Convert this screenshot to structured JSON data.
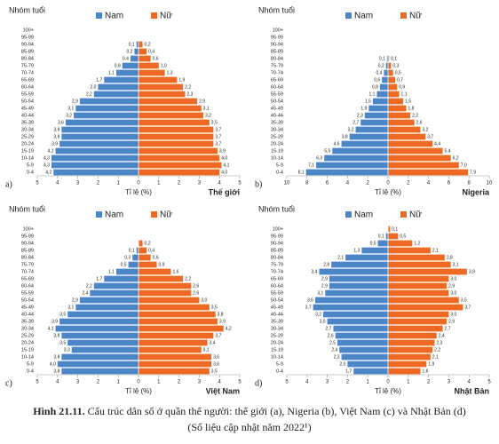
{
  "chart_data": [
    {
      "type": "pyramid",
      "panel": "a)",
      "title": "Thế giới",
      "y_label": "Nhóm tuổi",
      "x_label": "Tỉ lệ (%)",
      "categories": [
        "100+",
        "95-99",
        "90-94",
        "85-89",
        "80-84",
        "75-79",
        "70-74",
        "65-69",
        "60-64",
        "55-59",
        "50-54",
        "45-49",
        "40-44",
        "35-39",
        "30-34",
        "25-29",
        "20-24",
        "15-19",
        "10-14",
        "5-9",
        "0-4"
      ],
      "xlim": [
        -5,
        5
      ],
      "xticks": [
        {
          "value": -5,
          "label": "5"
        },
        {
          "value": -4,
          "label": "4"
        },
        {
          "value": -3,
          "label": "3"
        },
        {
          "value": -2,
          "label": "2"
        },
        {
          "value": -1,
          "label": "1"
        },
        0,
        1,
        2,
        3,
        4,
        5
      ],
      "series": [
        {
          "name": "Nam",
          "color": "#4a86c8",
          "side": "left",
          "values": [
            0,
            0,
            0.1,
            0.2,
            0.4,
            0.8,
            1.1,
            1.7,
            2.0,
            2.2,
            2.9,
            3.1,
            3.2,
            3.6,
            3.8,
            3.8,
            3.9,
            4.1,
            4.3,
            4.3,
            4.2
          ],
          "value_labels": [
            null,
            null,
            "0,1",
            "0,2",
            "0,4",
            "0,8",
            "1,1",
            "1,7",
            "2,0",
            "2,2",
            "2,9",
            "3,1",
            "3,2",
            "3,6",
            "3,8",
            "3,8",
            "3,9",
            "4,1",
            "4,3",
            "4,3",
            "4,2"
          ]
        },
        {
          "name": "Nữ",
          "color": "#ee6a22",
          "side": "right",
          "values": [
            0,
            0,
            0.2,
            0.4,
            0.6,
            1.0,
            1.3,
            1.9,
            2.2,
            2.3,
            2.9,
            3.1,
            3.2,
            3.5,
            3.7,
            3.7,
            3.7,
            3.9,
            4.0,
            4.1,
            4.0
          ],
          "value_labels": [
            null,
            null,
            "0,2",
            "0,4",
            "0,6",
            "1,0",
            "1,3",
            "1,9",
            "2,2",
            "2,3",
            "2,9",
            "3,1",
            "3,2",
            "3,5",
            "3,7",
            "3,7",
            "3,7",
            "3,9",
            "4,0",
            "4,1",
            "4,0"
          ]
        }
      ]
    },
    {
      "type": "pyramid",
      "panel": "b)",
      "title": "Nigeria",
      "y_label": "Nhóm tuổi",
      "x_label": "Tỉ lệ (%)",
      "categories": [
        "100+",
        "95-99",
        "90-94",
        "85-89",
        "80-84",
        "75-79",
        "70-74",
        "65-69",
        "60-64",
        "55-59",
        "50-54",
        "45-49",
        "40-44",
        "35-39",
        "30-34",
        "25-29",
        "20-24",
        "15-19",
        "10-14",
        "5-9",
        "0-4"
      ],
      "xlim": [
        -10,
        10
      ],
      "xticks": [
        {
          "value": -10,
          "label": "10"
        },
        {
          "value": -8,
          "label": "8"
        },
        {
          "value": -6,
          "label": "6"
        },
        {
          "value": -4,
          "label": "4"
        },
        {
          "value": -2,
          "label": "2"
        },
        0,
        2,
        4,
        6,
        8,
        10
      ],
      "series": [
        {
          "name": "Nam",
          "color": "#4a86c8",
          "side": "left",
          "values": [
            0,
            0,
            0,
            0,
            0.1,
            0.2,
            0.4,
            0.6,
            0.8,
            1.1,
            1.5,
            1.9,
            2.3,
            2.7,
            3.2,
            3.8,
            4.6,
            5.5,
            6.3,
            7.1,
            8.1
          ],
          "value_labels": [
            null,
            null,
            null,
            null,
            "0,1",
            "0,2",
            "0,4",
            "0,6",
            "0,8",
            "1,1",
            "1,5",
            "1,9",
            "2,3",
            "2,7",
            "3,2",
            "3,8",
            "4,6",
            "5,5",
            "6,3",
            "7,1",
            "8,1"
          ]
        },
        {
          "name": "Nữ",
          "color": "#ee6a22",
          "side": "right",
          "values": [
            0,
            0,
            0,
            0,
            0.1,
            0.3,
            0.5,
            0.7,
            0.9,
            1.1,
            1.5,
            1.8,
            2.2,
            2.6,
            3.2,
            3.7,
            4.4,
            5.4,
            6.2,
            7.0,
            7.9
          ],
          "value_labels": [
            null,
            null,
            null,
            null,
            "0,1",
            "0,3",
            "0,5",
            "0,7",
            "0,9",
            "1,1",
            "1,5",
            "1,8",
            "2,2",
            "2,6",
            "3,2",
            "3,7",
            "4,4",
            "5,4",
            "6,2",
            "7,0",
            "7,9"
          ]
        }
      ]
    },
    {
      "type": "pyramid",
      "panel": "c)",
      "title": "Việt Nam",
      "y_label": "Nhóm tuổi",
      "x_label": "Tỉ lệ (%)",
      "categories": [
        "100+",
        "95-99",
        "90-94",
        "85-89",
        "80-84",
        "75-79",
        "70-74",
        "65-69",
        "60-64",
        "55-59",
        "50-54",
        "45-49",
        "40-44",
        "35-39",
        "30-34",
        "25-29",
        "20-24",
        "15-19",
        "10-14",
        "5-9",
        "0-4"
      ],
      "xlim": [
        -5,
        5
      ],
      "xticks": [
        {
          "value": -5,
          "label": "5"
        },
        {
          "value": -4,
          "label": "4"
        },
        {
          "value": -3,
          "label": "3"
        },
        {
          "value": -2,
          "label": "2"
        },
        {
          "value": -1,
          "label": "1"
        },
        0,
        1,
        2,
        3,
        4,
        5
      ],
      "series": [
        {
          "name": "Nam",
          "color": "#4a86c8",
          "side": "left",
          "values": [
            0,
            0,
            0,
            0.1,
            0.3,
            0.5,
            1.1,
            1.7,
            2.2,
            2.4,
            2.9,
            3.1,
            3.5,
            3.9,
            4.1,
            3.8,
            3.5,
            3.3,
            3.8,
            4.0,
            3.8
          ],
          "value_labels": [
            null,
            null,
            null,
            "0,1",
            "0,3",
            "0,5",
            "1,1",
            "1,7",
            "2,2",
            "2,4",
            "2,9",
            "3,1",
            "3,5",
            "3,9",
            "4,1",
            "3,8",
            "3,5",
            "3,3",
            "3,8",
            "4,0",
            "3,8"
          ]
        },
        {
          "name": "Nữ",
          "color": "#ee6a22",
          "side": "right",
          "values": [
            0,
            0,
            0.2,
            0.4,
            0.6,
            0.9,
            1.6,
            2.2,
            2.6,
            2.6,
            3.0,
            3.5,
            3.8,
            3.9,
            4.2,
            3.7,
            3.4,
            3.1,
            3.6,
            3.6,
            3.5
          ],
          "value_labels": [
            null,
            null,
            "0,2",
            "0,4",
            "0,6",
            "0,9",
            "1,6",
            "2,2",
            "2,6",
            "2,6",
            "3,0",
            "3,5",
            "3,8",
            "3,9",
            "4,2",
            "3,7",
            "3,4",
            "3,1",
            "3,6",
            "3,6",
            "3,5"
          ]
        }
      ]
    },
    {
      "type": "pyramid",
      "panel": "d)",
      "title": "Nhật Bản",
      "y_label": "Nhóm tuổi",
      "x_label": "Tỉ lệ (%)",
      "categories": [
        "100+",
        "95-99",
        "90-94",
        "85-89",
        "80-84",
        "75-79",
        "70-74",
        "65-69",
        "60-64",
        "55-59",
        "50-54",
        "45-49",
        "40-44",
        "35-39",
        "30-34",
        "25-29",
        "20-24",
        "15-19",
        "10-14",
        "5-9",
        "0-4"
      ],
      "xlim": [
        -5,
        5
      ],
      "xticks": [
        {
          "value": -5,
          "label": "5"
        },
        {
          "value": -4,
          "label": "4"
        },
        {
          "value": -3,
          "label": "3"
        },
        {
          "value": -2,
          "label": "2"
        },
        {
          "value": -1,
          "label": "1"
        },
        0,
        1,
        2,
        3,
        4,
        5
      ],
      "series": [
        {
          "name": "Nam",
          "color": "#4a86c8",
          "side": "left",
          "values": [
            0,
            0.1,
            0.5,
            1.3,
            2.1,
            2.8,
            3.4,
            2.9,
            2.9,
            3.1,
            3.6,
            3.7,
            3.2,
            3.0,
            2.7,
            2.6,
            2.5,
            2.4,
            2.3,
            2.0,
            1.7
          ],
          "value_labels": [
            null,
            "0,1",
            "0,5",
            "1,3",
            "2,1",
            "2,8",
            "3,4",
            "2,9",
            "2,9",
            "3,1",
            "3,6",
            "3,7",
            "3,2",
            "3,0",
            "2,7",
            "2,6",
            "2,5",
            "2,4",
            "2,3",
            "2,0",
            "1,7"
          ]
        },
        {
          "name": "Nữ",
          "color": "#ee6a22",
          "side": "right",
          "values": [
            0.1,
            0.5,
            1.2,
            2.1,
            2.8,
            3.1,
            3.9,
            3.0,
            2.9,
            3.0,
            3.5,
            3.7,
            3.0,
            2.9,
            2.7,
            2.4,
            2.3,
            2.2,
            2.1,
            1.9,
            1.6
          ],
          "value_labels": [
            "0,1",
            "0,5",
            "1,2",
            "2,1",
            "2,8",
            "3,1",
            "3,9",
            "3,0",
            "2,9",
            "3,0",
            "3,5",
            "3,7",
            "3,0",
            "2,9",
            "2,7",
            "2,4",
            "2,3",
            "2,2",
            "2,1",
            "1,9",
            "1,6"
          ]
        }
      ]
    }
  ],
  "caption": {
    "label": "Hình 21.11.",
    "text": "Cấu trúc dân số ở quần thể người: thế giới (a), Nigeria (b), Việt Nam (c) và Nhật Bản (d)",
    "note": "(Số liệu cập nhật năm 2022¹)"
  }
}
